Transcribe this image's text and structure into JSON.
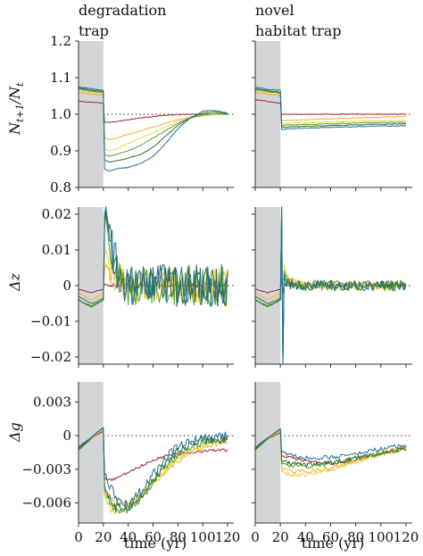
{
  "chart_data": {
    "type": "line",
    "column_titles": [
      [
        "degradation",
        "trap"
      ],
      [
        "novel",
        "habitat trap"
      ]
    ],
    "xlabel": "time (yr)",
    "xlim": [
      0,
      125
    ],
    "xticks": [
      0,
      20,
      40,
      60,
      80,
      100,
      120
    ],
    "shaded_interval": [
      0,
      20
    ],
    "colors": [
      "#a1242b",
      "#f2b02c",
      "#e8d445",
      "#5aa02c",
      "#2e6b3a",
      "#1f6f99"
    ],
    "rows": [
      {
        "ylabel_main": "N",
        "ylabel_sub1": "t+1",
        "ylabel_mid": "/N",
        "ylabel_sub2": "t",
        "ylim": [
          0.8,
          1.2
        ],
        "yticks": [
          0.8,
          0.9,
          1.0,
          1.1,
          1.2
        ],
        "ytick_labels": [
          "0.8",
          "0.9",
          "1.0",
          "1.1",
          "1.2"
        ],
        "reference": 1.0,
        "panels": [
          {
            "x": [
              0,
              10,
              20,
              21,
              25,
              30,
              40,
              50,
              60,
              70,
              80,
              90,
              100,
              110,
              120
            ],
            "series": [
              [
                1.035,
                1.033,
                1.03,
                0.978,
                0.978,
                0.98,
                0.985,
                0.99,
                0.994,
                0.997,
                0.999,
                1.0,
                1.0,
                1.0,
                1.0
              ],
              [
                1.06,
                1.055,
                1.05,
                0.935,
                0.93,
                0.935,
                0.945,
                0.955,
                0.965,
                0.975,
                0.985,
                0.993,
                0.997,
                0.999,
                1.0
              ],
              [
                1.065,
                1.06,
                1.055,
                0.905,
                0.9,
                0.905,
                0.92,
                0.935,
                0.95,
                0.965,
                0.98,
                0.99,
                0.996,
                0.999,
                1.0
              ],
              [
                1.07,
                1.063,
                1.06,
                0.89,
                0.885,
                0.89,
                0.9,
                0.915,
                0.935,
                0.955,
                0.975,
                0.99,
                0.998,
                1.002,
                1.0
              ],
              [
                1.072,
                1.066,
                1.062,
                0.875,
                0.87,
                0.872,
                0.88,
                0.89,
                0.91,
                0.94,
                0.97,
                0.99,
                1.003,
                1.006,
                1.002
              ],
              [
                1.075,
                1.07,
                1.065,
                0.85,
                0.845,
                0.85,
                0.855,
                0.865,
                0.885,
                0.92,
                0.96,
                0.99,
                1.008,
                1.01,
                1.003
              ]
            ]
          },
          {
            "x": [
              0,
              10,
              20,
              21,
              25,
              30,
              40,
              50,
              60,
              70,
              80,
              90,
              100,
              110,
              120
            ],
            "series": [
              [
                1.04,
                1.035,
                1.03,
                1.0,
                1.0,
                1.0,
                1.0,
                1.0,
                1.0,
                1.0,
                1.0,
                1.0,
                1.0,
                1.0,
                1.0
              ],
              [
                1.06,
                1.055,
                1.05,
                0.982,
                0.982,
                0.983,
                0.985,
                0.987,
                0.988,
                0.989,
                0.99,
                0.991,
                0.992,
                0.993,
                0.993
              ],
              [
                1.065,
                1.06,
                1.055,
                0.975,
                0.975,
                0.976,
                0.977,
                0.978,
                0.979,
                0.98,
                0.981,
                0.982,
                0.982,
                0.983,
                0.983
              ],
              [
                1.068,
                1.062,
                1.058,
                0.97,
                0.97,
                0.971,
                0.972,
                0.973,
                0.974,
                0.975,
                0.976,
                0.977,
                0.977,
                0.978,
                0.978
              ],
              [
                1.07,
                1.064,
                1.06,
                0.965,
                0.965,
                0.966,
                0.967,
                0.968,
                0.969,
                0.97,
                0.971,
                0.972,
                0.973,
                0.973,
                0.974
              ],
              [
                1.075,
                1.068,
                1.065,
                0.958,
                0.96,
                0.961,
                0.962,
                0.963,
                0.964,
                0.965,
                0.966,
                0.967,
                0.968,
                0.968,
                0.968
              ]
            ]
          }
        ]
      },
      {
        "ylabel_main": "Δz",
        "ylim": [
          -0.022,
          0.022
        ],
        "yticks": [
          -0.02,
          -0.01,
          0,
          0.01,
          0.02
        ],
        "ytick_labels": [
          "−0.02",
          "−0.01",
          "0",
          "0.01",
          "0.02"
        ],
        "reference": 0,
        "panels": [
          {
            "x": [
              0,
              5,
              10,
              15,
              20,
              21,
              22,
              25,
              30,
              35,
              40,
              50,
              60,
              70,
              80,
              90,
              100,
              110,
              120
            ],
            "series": [
              [
                -0.001,
                -0.0015,
                -0.002,
                -0.0015,
                -0.001,
                0.0005,
                0.0003,
                0.0001,
                0,
                0,
                0,
                0,
                0,
                0,
                0,
                0,
                0,
                0,
                0
              ],
              [
                -0.002,
                -0.003,
                -0.004,
                -0.003,
                -0.002,
                0.004,
                0.006,
                0.004,
                0.002,
                0.001,
                0,
                0,
                0,
                0,
                0,
                0,
                0,
                0,
                0
              ],
              [
                -0.003,
                -0.004,
                -0.005,
                -0.004,
                -0.003,
                0.008,
                0.01,
                0.006,
                0.003,
                0.001,
                0,
                0,
                0,
                0,
                0,
                0,
                0,
                0,
                0
              ],
              [
                -0.004,
                -0.005,
                -0.0055,
                -0.005,
                -0.004,
                0.015,
                0.02,
                0.01,
                0.004,
                0.001,
                0,
                0,
                0,
                0,
                0,
                0,
                0,
                0,
                0
              ],
              [
                -0.004,
                -0.005,
                -0.006,
                -0.005,
                -0.004,
                0.018,
                0.021,
                0.012,
                0.005,
                0.001,
                0,
                0,
                0,
                0,
                0,
                0,
                0,
                0,
                0
              ],
              [
                -0.003,
                -0.004,
                -0.005,
                -0.0045,
                -0.0035,
                0.02,
                0.022,
                0.014,
                0.006,
                0.002,
                0,
                0,
                0,
                0,
                0,
                0,
                0,
                0,
                0
              ]
            ],
            "noise_after_year": 25,
            "noise_amplitude": [
              0.0005,
              0.004,
              0.005,
              0.006,
              0.006,
              0.006
            ]
          },
          {
            "x": [
              0,
              5,
              10,
              15,
              20,
              21,
              22,
              23,
              25,
              30,
              40,
              60,
              80,
              100,
              120
            ],
            "series": [
              [
                -0.001,
                -0.0015,
                -0.002,
                -0.0015,
                -0.001,
                0.002,
                -0.002,
                0.0005,
                0,
                0,
                0,
                0,
                0,
                0,
                0
              ],
              [
                -0.002,
                -0.003,
                -0.004,
                -0.003,
                -0.002,
                0.01,
                -0.015,
                0.004,
                0.002,
                0.001,
                0,
                0,
                0,
                0,
                0
              ],
              [
                -0.003,
                -0.004,
                -0.005,
                -0.004,
                -0.003,
                0.018,
                -0.02,
                0.006,
                0.003,
                0.001,
                0,
                0,
                0,
                0,
                0
              ],
              [
                -0.004,
                -0.005,
                -0.0055,
                -0.005,
                -0.004,
                0.02,
                -0.021,
                0.004,
                0.002,
                0.0005,
                0,
                0,
                0,
                0,
                0
              ],
              [
                -0.004,
                -0.005,
                -0.006,
                -0.005,
                -0.004,
                0.022,
                -0.022,
                0.003,
                0.001,
                0.0003,
                0,
                0,
                0,
                0,
                0
              ],
              [
                -0.003,
                -0.004,
                -0.005,
                -0.0045,
                -0.0035,
                0.022,
                -0.022,
                0.002,
                0.001,
                0.0002,
                0,
                0,
                0,
                0,
                0
              ]
            ],
            "noise_after_year": 25,
            "noise_amplitude": [
              0.0004,
              0.0012,
              0.0012,
              0.0015,
              0.0015,
              0.0015
            ]
          }
        ]
      },
      {
        "ylabel_main": "Δg",
        "ylim": [
          -0.0078,
          0.0048
        ],
        "yticks": [
          -0.006,
          -0.003,
          0,
          0.003
        ],
        "ytick_labels": [
          "−0.006",
          "−0.003",
          "0",
          "0.003"
        ],
        "reference": 0,
        "panels": [
          {
            "x": [
              0,
              5,
              10,
              15,
              20,
              21,
              25,
              30,
              40,
              50,
              60,
              70,
              80,
              90,
              100,
              110,
              120
            ],
            "series": [
              [
                -0.001,
                -0.0006,
                -0.0002,
                0.0001,
                0.0004,
                -0.0038,
                -0.004,
                -0.0038,
                -0.0033,
                -0.0027,
                -0.0022,
                -0.0018,
                -0.0016,
                -0.0015,
                -0.0014,
                -0.0013,
                -0.0013
              ],
              [
                -0.0012,
                -0.0007,
                -0.0003,
                0.0002,
                0.0005,
                -0.0045,
                -0.0055,
                -0.0062,
                -0.006,
                -0.0052,
                -0.0042,
                -0.0032,
                -0.0022,
                -0.0015,
                -0.001,
                -0.0007,
                -0.0006
              ],
              [
                -0.0013,
                -0.0008,
                -0.0003,
                0.0002,
                0.0006,
                -0.0055,
                -0.0065,
                -0.007,
                -0.0065,
                -0.0055,
                -0.0042,
                -0.003,
                -0.002,
                -0.0013,
                -0.0008,
                -0.0005,
                -0.0004
              ],
              [
                -0.0013,
                -0.0008,
                -0.0003,
                0.0003,
                0.0007,
                -0.005,
                -0.006,
                -0.0068,
                -0.0066,
                -0.0056,
                -0.0042,
                -0.0028,
                -0.0017,
                -0.001,
                -0.0006,
                -0.0004,
                -0.0003
              ],
              [
                -0.0012,
                -0.0007,
                -0.0002,
                0.0003,
                0.0007,
                -0.0045,
                -0.0055,
                -0.0063,
                -0.0064,
                -0.0055,
                -0.004,
                -0.0025,
                -0.0014,
                -0.0008,
                -0.0005,
                -0.0003,
                -0.0002
              ],
              [
                -0.0011,
                -0.0006,
                -0.0002,
                0.0003,
                0.0007,
                -0.0035,
                -0.0045,
                -0.0055,
                -0.006,
                -0.005,
                -0.0035,
                -0.002,
                -0.001,
                -0.0005,
                -0.0003,
                -0.0002,
                -0.0001
              ]
            ],
            "noise_after_year": 22,
            "noise_amplitude": [
              0.00012,
              0.0003,
              0.0003,
              0.00035,
              0.0004,
              0.00045
            ]
          },
          {
            "x": [
              0,
              5,
              10,
              15,
              20,
              21,
              25,
              30,
              40,
              50,
              60,
              70,
              80,
              90,
              100,
              110,
              120
            ],
            "series": [
              [
                -0.0012,
                -0.0007,
                -0.0003,
                0.0,
                0.0003,
                -0.0018,
                -0.0019,
                -0.002,
                -0.0022,
                -0.0024,
                -0.0025,
                -0.0024,
                -0.0022,
                -0.0019,
                -0.0016,
                -0.0013,
                -0.001
              ],
              [
                -0.0013,
                -0.0008,
                -0.0003,
                0.0001,
                0.0004,
                -0.0028,
                -0.003,
                -0.0031,
                -0.0032,
                -0.0031,
                -0.0029,
                -0.0026,
                -0.0022,
                -0.0019,
                -0.0016,
                -0.0013,
                -0.001
              ],
              [
                -0.0013,
                -0.0008,
                -0.0003,
                0.0001,
                0.0005,
                -0.0032,
                -0.0034,
                -0.0035,
                -0.0035,
                -0.0033,
                -0.003,
                -0.0027,
                -0.0023,
                -0.002,
                -0.0017,
                -0.0014,
                -0.0012
              ],
              [
                -0.0013,
                -0.0008,
                -0.0003,
                0.0002,
                0.0006,
                -0.0025,
                -0.0026,
                -0.0027,
                -0.0028,
                -0.0027,
                -0.0025,
                -0.0023,
                -0.002,
                -0.0018,
                -0.0015,
                -0.0013,
                -0.0011
              ],
              [
                -0.0012,
                -0.0007,
                -0.0002,
                0.0002,
                0.0006,
                -0.0022,
                -0.0024,
                -0.0025,
                -0.0026,
                -0.0025,
                -0.0024,
                -0.0022,
                -0.002,
                -0.0018,
                -0.0016,
                -0.0014,
                -0.0012
              ],
              [
                -0.0011,
                -0.0006,
                -0.0002,
                0.0002,
                0.0006,
                -0.0015,
                -0.0017,
                -0.0018,
                -0.002,
                -0.002,
                -0.0019,
                -0.0018,
                -0.0016,
                -0.0014,
                -0.0012,
                -0.001,
                -0.0009
              ]
            ],
            "noise_after_year": 22,
            "noise_amplitude": [
              0.00012,
              0.0002,
              0.0002,
              0.0002,
              0.0002,
              0.0002
            ]
          }
        ]
      }
    ]
  }
}
